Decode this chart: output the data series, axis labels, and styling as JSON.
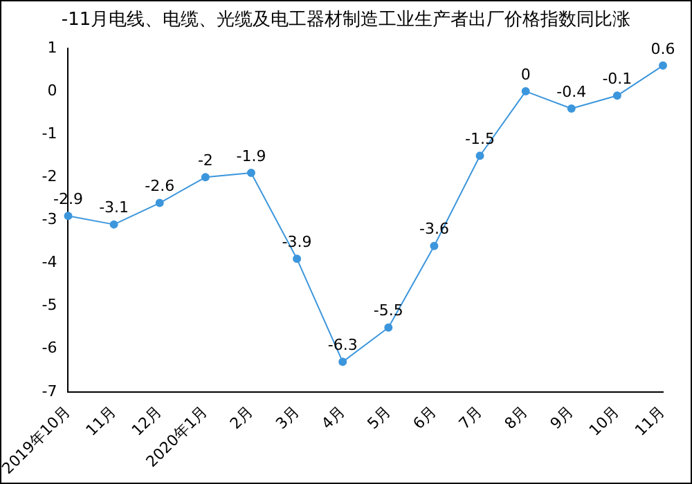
{
  "chart_data": {
    "type": "line",
    "title": "-11月电线、电缆、光缆及电工器材制造工业生产者出厂价格指数同比涨",
    "categories": [
      "2019年10月",
      "11月",
      "12月",
      "2020年1月",
      "2月",
      "3月",
      "4月",
      "5月",
      "6月",
      "7月",
      "8月",
      "9月",
      "10月",
      "11月"
    ],
    "series": [
      {
        "color": "#3c96dc",
        "values": [
          -2.9,
          -3.1,
          -2.6,
          -2,
          -1.9,
          -3.9,
          -6.3,
          -5.5,
          -3.6,
          -1.5,
          0,
          -0.4,
          -0.1,
          0.6
        ]
      }
    ],
    "ylim": [
      -7,
      1
    ],
    "yticks": [
      -7,
      -6,
      -5,
      -4,
      -3,
      -2,
      -1,
      0,
      1
    ],
    "grid": false,
    "legend": false,
    "marker": "circle",
    "line_style": "solid",
    "data_labels": true
  }
}
